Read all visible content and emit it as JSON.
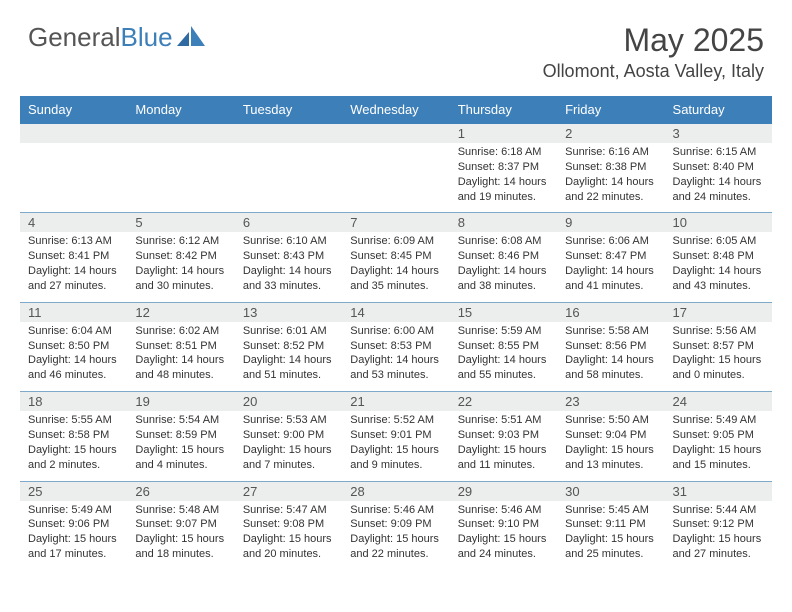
{
  "brand": {
    "part1": "General",
    "part2": "Blue"
  },
  "month_title": "May 2025",
  "location": "Ollomont, Aosta Valley, Italy",
  "colors": {
    "header_bg": "#3d7fb8",
    "header_text": "#ffffff",
    "daynum_bg": "#eceded",
    "cell_border": "#7fa9c9",
    "text": "#333333",
    "title": "#444444"
  },
  "typography": {
    "month_title_fontsize": 32,
    "location_fontsize": 18,
    "dayheader_fontsize": 13,
    "daynum_fontsize": 13,
    "cell_fontsize": 11
  },
  "day_headers": [
    "Sunday",
    "Monday",
    "Tuesday",
    "Wednesday",
    "Thursday",
    "Friday",
    "Saturday"
  ],
  "weeks": [
    [
      {
        "num": "",
        "sunrise": "",
        "sunset": "",
        "daylight": ""
      },
      {
        "num": "",
        "sunrise": "",
        "sunset": "",
        "daylight": ""
      },
      {
        "num": "",
        "sunrise": "",
        "sunset": "",
        "daylight": ""
      },
      {
        "num": "",
        "sunrise": "",
        "sunset": "",
        "daylight": ""
      },
      {
        "num": "1",
        "sunrise": "Sunrise: 6:18 AM",
        "sunset": "Sunset: 8:37 PM",
        "daylight": "Daylight: 14 hours and 19 minutes."
      },
      {
        "num": "2",
        "sunrise": "Sunrise: 6:16 AM",
        "sunset": "Sunset: 8:38 PM",
        "daylight": "Daylight: 14 hours and 22 minutes."
      },
      {
        "num": "3",
        "sunrise": "Sunrise: 6:15 AM",
        "sunset": "Sunset: 8:40 PM",
        "daylight": "Daylight: 14 hours and 24 minutes."
      }
    ],
    [
      {
        "num": "4",
        "sunrise": "Sunrise: 6:13 AM",
        "sunset": "Sunset: 8:41 PM",
        "daylight": "Daylight: 14 hours and 27 minutes."
      },
      {
        "num": "5",
        "sunrise": "Sunrise: 6:12 AM",
        "sunset": "Sunset: 8:42 PM",
        "daylight": "Daylight: 14 hours and 30 minutes."
      },
      {
        "num": "6",
        "sunrise": "Sunrise: 6:10 AM",
        "sunset": "Sunset: 8:43 PM",
        "daylight": "Daylight: 14 hours and 33 minutes."
      },
      {
        "num": "7",
        "sunrise": "Sunrise: 6:09 AM",
        "sunset": "Sunset: 8:45 PM",
        "daylight": "Daylight: 14 hours and 35 minutes."
      },
      {
        "num": "8",
        "sunrise": "Sunrise: 6:08 AM",
        "sunset": "Sunset: 8:46 PM",
        "daylight": "Daylight: 14 hours and 38 minutes."
      },
      {
        "num": "9",
        "sunrise": "Sunrise: 6:06 AM",
        "sunset": "Sunset: 8:47 PM",
        "daylight": "Daylight: 14 hours and 41 minutes."
      },
      {
        "num": "10",
        "sunrise": "Sunrise: 6:05 AM",
        "sunset": "Sunset: 8:48 PM",
        "daylight": "Daylight: 14 hours and 43 minutes."
      }
    ],
    [
      {
        "num": "11",
        "sunrise": "Sunrise: 6:04 AM",
        "sunset": "Sunset: 8:50 PM",
        "daylight": "Daylight: 14 hours and 46 minutes."
      },
      {
        "num": "12",
        "sunrise": "Sunrise: 6:02 AM",
        "sunset": "Sunset: 8:51 PM",
        "daylight": "Daylight: 14 hours and 48 minutes."
      },
      {
        "num": "13",
        "sunrise": "Sunrise: 6:01 AM",
        "sunset": "Sunset: 8:52 PM",
        "daylight": "Daylight: 14 hours and 51 minutes."
      },
      {
        "num": "14",
        "sunrise": "Sunrise: 6:00 AM",
        "sunset": "Sunset: 8:53 PM",
        "daylight": "Daylight: 14 hours and 53 minutes."
      },
      {
        "num": "15",
        "sunrise": "Sunrise: 5:59 AM",
        "sunset": "Sunset: 8:55 PM",
        "daylight": "Daylight: 14 hours and 55 minutes."
      },
      {
        "num": "16",
        "sunrise": "Sunrise: 5:58 AM",
        "sunset": "Sunset: 8:56 PM",
        "daylight": "Daylight: 14 hours and 58 minutes."
      },
      {
        "num": "17",
        "sunrise": "Sunrise: 5:56 AM",
        "sunset": "Sunset: 8:57 PM",
        "daylight": "Daylight: 15 hours and 0 minutes."
      }
    ],
    [
      {
        "num": "18",
        "sunrise": "Sunrise: 5:55 AM",
        "sunset": "Sunset: 8:58 PM",
        "daylight": "Daylight: 15 hours and 2 minutes."
      },
      {
        "num": "19",
        "sunrise": "Sunrise: 5:54 AM",
        "sunset": "Sunset: 8:59 PM",
        "daylight": "Daylight: 15 hours and 4 minutes."
      },
      {
        "num": "20",
        "sunrise": "Sunrise: 5:53 AM",
        "sunset": "Sunset: 9:00 PM",
        "daylight": "Daylight: 15 hours and 7 minutes."
      },
      {
        "num": "21",
        "sunrise": "Sunrise: 5:52 AM",
        "sunset": "Sunset: 9:01 PM",
        "daylight": "Daylight: 15 hours and 9 minutes."
      },
      {
        "num": "22",
        "sunrise": "Sunrise: 5:51 AM",
        "sunset": "Sunset: 9:03 PM",
        "daylight": "Daylight: 15 hours and 11 minutes."
      },
      {
        "num": "23",
        "sunrise": "Sunrise: 5:50 AM",
        "sunset": "Sunset: 9:04 PM",
        "daylight": "Daylight: 15 hours and 13 minutes."
      },
      {
        "num": "24",
        "sunrise": "Sunrise: 5:49 AM",
        "sunset": "Sunset: 9:05 PM",
        "daylight": "Daylight: 15 hours and 15 minutes."
      }
    ],
    [
      {
        "num": "25",
        "sunrise": "Sunrise: 5:49 AM",
        "sunset": "Sunset: 9:06 PM",
        "daylight": "Daylight: 15 hours and 17 minutes."
      },
      {
        "num": "26",
        "sunrise": "Sunrise: 5:48 AM",
        "sunset": "Sunset: 9:07 PM",
        "daylight": "Daylight: 15 hours and 18 minutes."
      },
      {
        "num": "27",
        "sunrise": "Sunrise: 5:47 AM",
        "sunset": "Sunset: 9:08 PM",
        "daylight": "Daylight: 15 hours and 20 minutes."
      },
      {
        "num": "28",
        "sunrise": "Sunrise: 5:46 AM",
        "sunset": "Sunset: 9:09 PM",
        "daylight": "Daylight: 15 hours and 22 minutes."
      },
      {
        "num": "29",
        "sunrise": "Sunrise: 5:46 AM",
        "sunset": "Sunset: 9:10 PM",
        "daylight": "Daylight: 15 hours and 24 minutes."
      },
      {
        "num": "30",
        "sunrise": "Sunrise: 5:45 AM",
        "sunset": "Sunset: 9:11 PM",
        "daylight": "Daylight: 15 hours and 25 minutes."
      },
      {
        "num": "31",
        "sunrise": "Sunrise: 5:44 AM",
        "sunset": "Sunset: 9:12 PM",
        "daylight": "Daylight: 15 hours and 27 minutes."
      }
    ]
  ]
}
